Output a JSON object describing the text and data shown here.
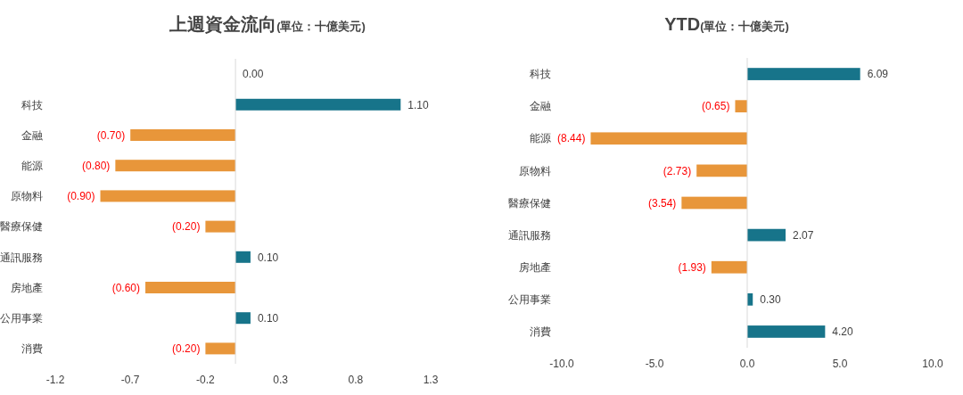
{
  "chart_data": [
    {
      "type": "bar",
      "orientation": "horizontal",
      "title": "上週資金流向",
      "subtitle": "(單位：十億美元)",
      "categories": [
        null,
        "科技",
        "金融",
        "能源",
        "原物料",
        "醫療保健",
        "通訊服務",
        "房地產",
        "公用事業",
        "消費"
      ],
      "values": [
        0,
        1.1,
        -0.7,
        -0.8,
        -0.9,
        -0.2,
        0.1,
        -0.6,
        0.1,
        -0.2
      ],
      "colors": [
        "#17748a",
        "#17748a",
        "#e8963a",
        "#e8963a",
        "#e8963a",
        "#e8963a",
        "#17748a",
        "#e8963a",
        "#17748a",
        "#e8963a"
      ],
      "value_labels": [
        "0.00",
        "1.10",
        "(0.70)",
        "(0.80)",
        "(0.90)",
        "(0.20)",
        "0.10",
        "(0.60)",
        "0.10",
        "(0.20)"
      ],
      "xlim": [
        -1.2,
        1.3
      ],
      "xticks": [
        -1.2,
        -0.7,
        -0.2,
        0.3,
        0.8,
        1.3
      ]
    },
    {
      "type": "bar",
      "orientation": "horizontal",
      "title": "YTD",
      "subtitle": "(單位：十億美元)",
      "categories": [
        "科技",
        "金融",
        "能源",
        "原物料",
        "醫療保健",
        "通訊服務",
        "房地產",
        "公用事業",
        "消費"
      ],
      "values": [
        6.09,
        -0.65,
        -8.44,
        -2.73,
        -3.54,
        2.07,
        -1.93,
        0.3,
        4.2
      ],
      "colors": [
        "#17748a",
        "#e8963a",
        "#e8963a",
        "#e8963a",
        "#e8963a",
        "#17748a",
        "#e8963a",
        "#17748a",
        "#17748a"
      ],
      "value_labels": [
        "6.09",
        "(0.65)",
        "(8.44)",
        "(2.73)",
        "(3.54)",
        "2.07",
        "(1.93)",
        "0.30",
        "4.20"
      ],
      "xlim": [
        -10,
        10
      ],
      "xticks": [
        {
          "value": -10,
          "label": "-10.0"
        },
        {
          "value": -5,
          "label": "-5.0"
        },
        {
          "value": 0,
          "label": "0.0"
        },
        {
          "value": 5,
          "label": "5.0"
        },
        {
          "value": 10,
          "label": "10.0"
        }
      ]
    }
  ]
}
